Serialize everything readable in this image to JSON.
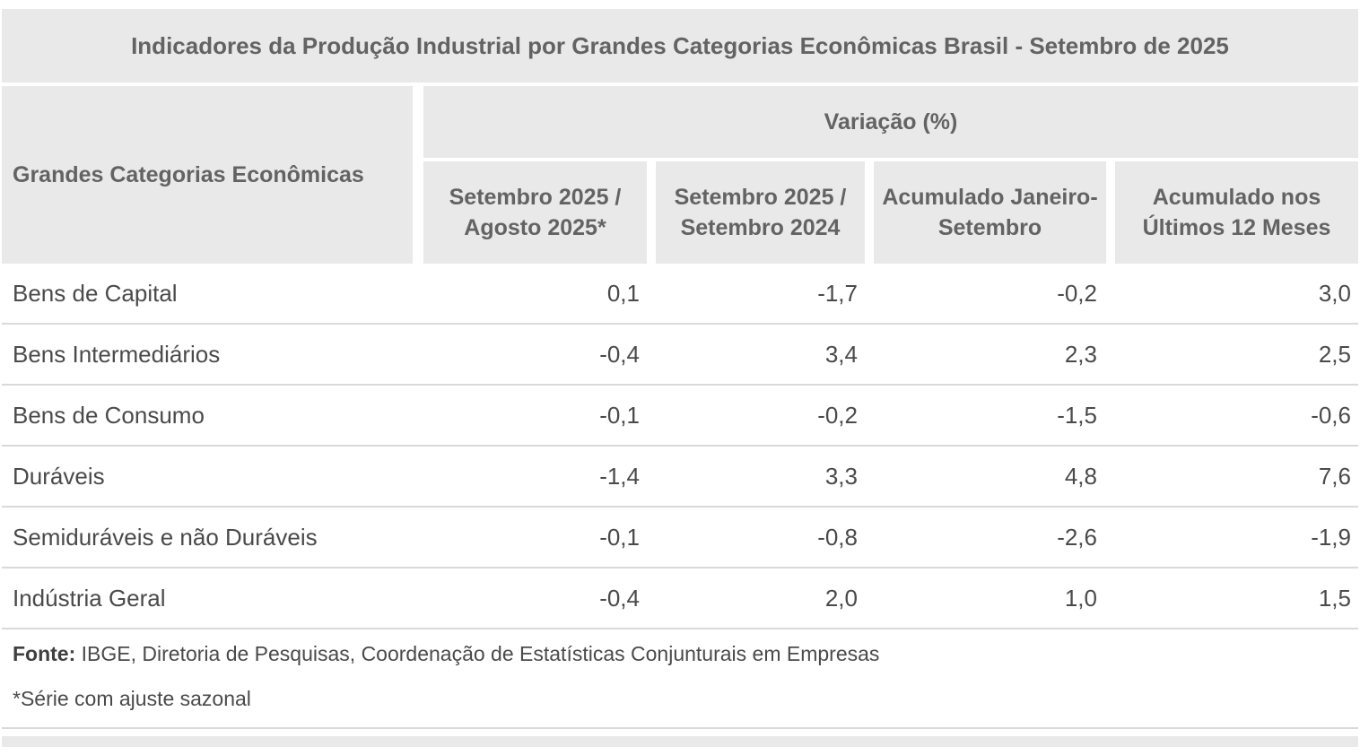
{
  "colors": {
    "cell_background": "#e9e9e9",
    "header_text": "#636363",
    "body_text": "#4a4a4a",
    "row_border": "#d9d9d9",
    "source_bold_text": "#3f3f3f"
  },
  "table": {
    "title": "Indicadores da Produção Industrial por Grandes Categorias Econômicas Brasil - Setembro de 2025",
    "row_group_header": "Grandes Categorias Econômicas",
    "column_group_header": "Variação (%)",
    "columns": [
      "Setembro 2025 / Agosto 2025*",
      "Setembro 2025 / Setembro 2024",
      "Acumulado Janeiro-Setembro",
      "Acumulado nos Últimos 12 Meses"
    ],
    "rows": [
      {
        "label": "Bens de Capital",
        "cells": [
          "0,1",
          "-1,7",
          "-0,2",
          "3,0"
        ]
      },
      {
        "label": "Bens Intermediários",
        "cells": [
          "-0,4",
          "3,4",
          "2,3",
          "2,5"
        ]
      },
      {
        "label": "Bens de Consumo",
        "cells": [
          "-0,1",
          "-0,2",
          "-1,5",
          "-0,6"
        ]
      },
      {
        "label": "Duráveis",
        "cells": [
          "-1,4",
          "3,3",
          "4,8",
          "7,6"
        ]
      },
      {
        "label": "Semiduráveis e não Duráveis",
        "cells": [
          "-0,1",
          "-0,8",
          "-2,6",
          "-1,9"
        ]
      },
      {
        "label": "Indústria Geral",
        "cells": [
          "-0,4",
          "2,0",
          "1,0",
          "1,5"
        ]
      }
    ],
    "source_label": "Fonte:",
    "source_text": " IBGE, Diretoria de Pesquisas, Coordenação de Estatísticas Conjunturais em Empresas",
    "footnote": "*Série com ajuste sazonal"
  },
  "chart_data": {
    "type": "table",
    "title": "Indicadores da Produção Industrial por Grandes Categorias Econômicas Brasil - Setembro de 2025",
    "row_header": "Grandes Categorias Econômicas",
    "column_group": "Variação (%)",
    "columns": [
      "Setembro 2025 / Agosto 2025*",
      "Setembro 2025 / Setembro 2024",
      "Acumulado Janeiro-Setembro",
      "Acumulado nos Últimos 12 Meses"
    ],
    "categories": [
      "Bens de Capital",
      "Bens Intermediários",
      "Bens de Consumo",
      "Duráveis",
      "Semiduráveis e não Duráveis",
      "Indústria Geral"
    ],
    "series": [
      {
        "name": "Setembro 2025 / Agosto 2025*",
        "values": [
          0.1,
          -0.4,
          -0.1,
          -1.4,
          -0.1,
          -0.4
        ]
      },
      {
        "name": "Setembro 2025 / Setembro 2024",
        "values": [
          -1.7,
          3.4,
          -0.2,
          3.3,
          -0.8,
          2.0
        ]
      },
      {
        "name": "Acumulado Janeiro-Setembro",
        "values": [
          -0.2,
          2.3,
          -1.5,
          4.8,
          -2.6,
          1.0
        ]
      },
      {
        "name": "Acumulado nos Últimos 12 Meses",
        "values": [
          3.0,
          2.5,
          -0.6,
          7.6,
          -1.9,
          1.5
        ]
      }
    ],
    "source": "Fonte: IBGE, Diretoria de Pesquisas, Coordenação de Estatísticas Conjunturais em Empresas",
    "footnote": "*Série com ajuste sazonal",
    "decimal_separator": ","
  }
}
